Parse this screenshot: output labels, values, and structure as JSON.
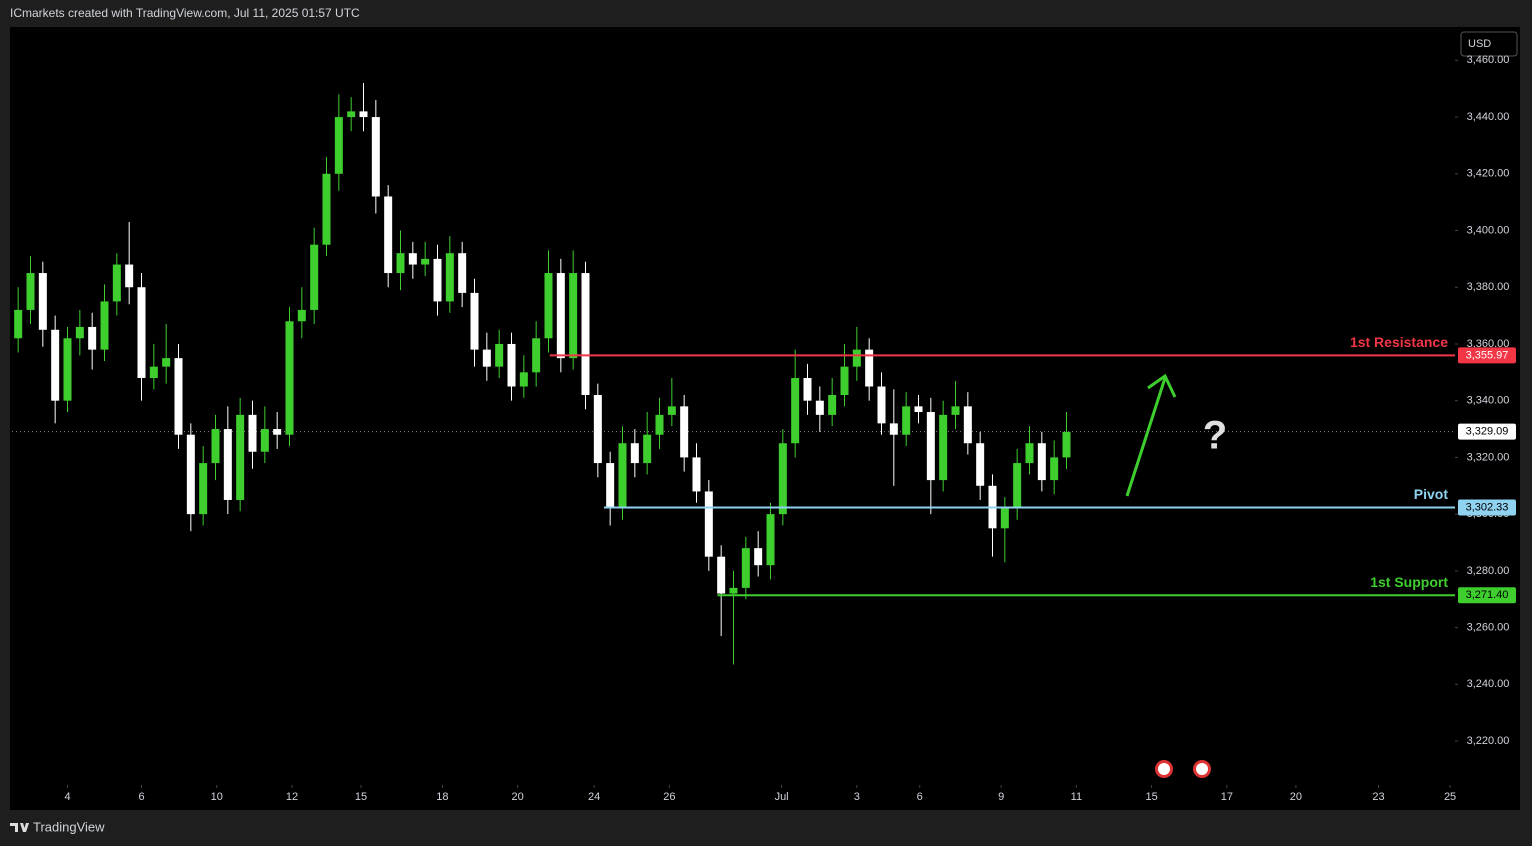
{
  "header": "ICmarkets created with TradingView.com, Jul 11, 2025 01:57 UTC",
  "currency": "USD",
  "footer": "TradingView",
  "chart_data": {
    "type": "candlestick",
    "up_color": "#3ecf2f",
    "down_color": "#ffffff",
    "xlim": [
      0,
      117
    ],
    "ylim": [
      3204.5,
      3471.4
    ],
    "xticks": [
      {
        "value": 4.5,
        "label": "4"
      },
      {
        "value": 10.5,
        "label": "6"
      },
      {
        "value": 16.6,
        "label": "10"
      },
      {
        "value": 22.7,
        "label": "12"
      },
      {
        "value": 28.3,
        "label": "15"
      },
      {
        "value": 34.9,
        "label": "18"
      },
      {
        "value": 41,
        "label": "20"
      },
      {
        "value": 47.2,
        "label": "24"
      },
      {
        "value": 53.3,
        "label": "26"
      },
      {
        "value": 62.4,
        "label": "Jul"
      },
      {
        "value": 68.5,
        "label": "3"
      },
      {
        "value": 73.6,
        "label": "6"
      },
      {
        "value": 80.2,
        "label": "9"
      },
      {
        "value": 86.3,
        "label": "11"
      },
      {
        "value": 92.4,
        "label": "15"
      },
      {
        "value": 98.5,
        "label": "17"
      },
      {
        "value": 104.1,
        "label": "20"
      },
      {
        "value": 110.8,
        "label": "23"
      },
      {
        "value": 116.6,
        "label": "25"
      }
    ],
    "yticks": [
      {
        "value": 3220,
        "label": "3,220.00"
      },
      {
        "value": 3240,
        "label": "3,240.00"
      },
      {
        "value": 3260,
        "label": "3,260.00"
      },
      {
        "value": 3280,
        "label": "3,280.00"
      },
      {
        "value": 3300,
        "label": "3,300.00"
      },
      {
        "value": 3320,
        "label": "3,320.00"
      },
      {
        "value": 3340,
        "label": "3,340.00"
      },
      {
        "value": 3360,
        "label": "3,360.00"
      },
      {
        "value": 3380,
        "label": "3,380.00"
      },
      {
        "value": 3400,
        "label": "3,400.00"
      },
      {
        "value": 3420,
        "label": "3,420.00"
      },
      {
        "value": 3440,
        "label": "3,440.00"
      },
      {
        "value": 3460,
        "label": "3,460.00"
      }
    ],
    "open": [
      3362,
      3372,
      3385,
      3365,
      3340,
      3362,
      3366,
      3358,
      3375,
      3388,
      3380,
      3348,
      3352,
      3355,
      3328,
      3300,
      3318,
      3330,
      3305,
      3335,
      3322,
      3330,
      3328,
      3368,
      3372,
      3395,
      3420,
      3440,
      3442,
      3440,
      3412,
      3385,
      3392,
      3388,
      3390,
      3375,
      3392,
      3378,
      3358,
      3352,
      3360,
      3345,
      3350,
      3362,
      3385,
      3355,
      3385,
      3342,
      3318,
      3302,
      3325,
      3318,
      3328,
      3335,
      3338,
      3320,
      3308,
      3285,
      3272,
      3274,
      3288,
      3282,
      3300,
      3325,
      3348,
      3340,
      3335,
      3342,
      3352,
      3358,
      3345,
      3332,
      3328,
      3338,
      3336,
      3312,
      3335,
      3338,
      3325,
      3310,
      3295,
      3302,
      3318,
      3325,
      3312,
      3320
    ],
    "high": [
      3380,
      3391,
      3389,
      3370,
      3366,
      3372,
      3371,
      3381,
      3392,
      3403,
      3385,
      3360,
      3367,
      3360,
      3332,
      3324,
      3335,
      3338,
      3341,
      3340,
      3338,
      3336,
      3373,
      3380,
      3401,
      3426,
      3448,
      3447,
      3452,
      3446,
      3416,
      3400,
      3396,
      3396,
      3395,
      3398,
      3396,
      3383,
      3364,
      3365,
      3364,
      3356,
      3368,
      3393,
      3390,
      3393,
      3389,
      3346,
      3322,
      3331,
      3330,
      3336,
      3341,
      3348,
      3342,
      3325,
      3312,
      3289,
      3280,
      3292,
      3294,
      3304,
      3330,
      3358,
      3353,
      3345,
      3348,
      3360,
      3366,
      3362,
      3350,
      3344,
      3343,
      3342,
      3341,
      3340,
      3347,
      3343,
      3329,
      3314,
      3306,
      3323,
      3331,
      3329,
      3326,
      3336
    ],
    "low": [
      3357,
      3367,
      3359,
      3332,
      3336,
      3356,
      3351,
      3354,
      3370,
      3374,
      3340,
      3344,
      3346,
      3323,
      3294,
      3296,
      3312,
      3300,
      3301,
      3316,
      3318,
      3323,
      3324,
      3362,
      3367,
      3391,
      3414,
      3435,
      3435,
      3406,
      3380,
      3379,
      3383,
      3384,
      3370,
      3371,
      3373,
      3352,
      3347,
      3348,
      3340,
      3341,
      3345,
      3357,
      3350,
      3351,
      3337,
      3313,
      3296,
      3298,
      3313,
      3314,
      3323,
      3331,
      3315,
      3304,
      3280,
      3257,
      3247,
      3270,
      3278,
      3277,
      3296,
      3320,
      3335,
      3329,
      3331,
      3338,
      3347,
      3340,
      3328,
      3310,
      3324,
      3332,
      3300,
      3308,
      3330,
      3321,
      3305,
      3285,
      3283,
      3298,
      3314,
      3308,
      3307,
      3316
    ],
    "close": [
      3372,
      3385,
      3365,
      3340,
      3362,
      3366,
      3358,
      3375,
      3388,
      3380,
      3348,
      3352,
      3355,
      3328,
      3300,
      3318,
      3330,
      3305,
      3335,
      3322,
      3330,
      3328,
      3368,
      3372,
      3395,
      3420,
      3440,
      3442,
      3440,
      3412,
      3385,
      3392,
      3388,
      3390,
      3375,
      3392,
      3378,
      3358,
      3352,
      3360,
      3345,
      3350,
      3362,
      3385,
      3355,
      3385,
      3342,
      3318,
      3302,
      3325,
      3318,
      3328,
      3335,
      3338,
      3320,
      3308,
      3285,
      3272,
      3274,
      3288,
      3282,
      3300,
      3325,
      3348,
      3340,
      3335,
      3342,
      3352,
      3358,
      3345,
      3332,
      3328,
      3338,
      3336,
      3312,
      3335,
      3338,
      3325,
      3310,
      3295,
      3302,
      3318,
      3325,
      3312,
      3320,
      3329
    ],
    "levels": [
      {
        "name": "1st Resistance",
        "value": 3355.97,
        "value_label": "3,355.97",
        "color": "#f23645",
        "x_start": 43.6
      },
      {
        "name": "Pivot",
        "value": 3302.33,
        "value_label": "3,302.33",
        "color": "#8fd3f0",
        "x_start": 48
      },
      {
        "name": "1st Support",
        "value": 3271.4,
        "value_label": "3,271.40",
        "color": "#3ecf2f",
        "x_start": 57.2
      }
    ],
    "last_price": {
      "value": 3329.09,
      "value_label": "3,329.09"
    },
    "annotations": [
      "?"
    ]
  }
}
